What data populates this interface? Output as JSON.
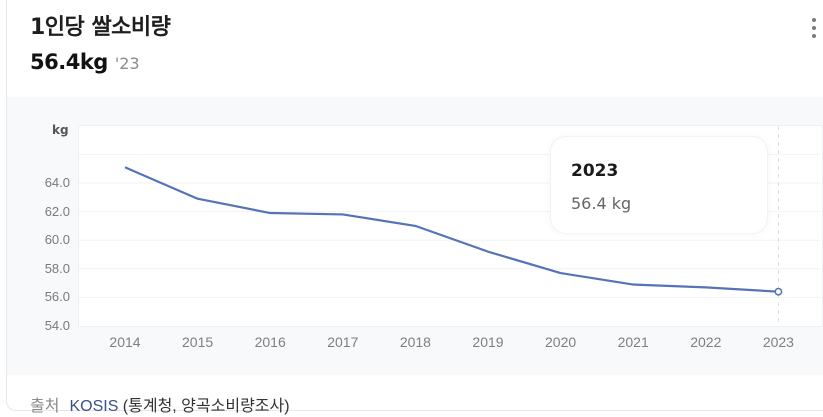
{
  "header": {
    "title": "1인당 쌀소비량",
    "value": "56.4kg",
    "year": "'23"
  },
  "menu": {
    "icon": "more-vertical-icon"
  },
  "chart": {
    "unit": "kg",
    "y_ticks": [
      "64.0",
      "62.0",
      "60.0",
      "58.0",
      "56.0",
      "54.0"
    ],
    "x_ticks": [
      "2014",
      "2015",
      "2016",
      "2017",
      "2018",
      "2019",
      "2020",
      "2021",
      "2022",
      "2023"
    ],
    "line_color": "#5673b8"
  },
  "tooltip": {
    "year": "2023",
    "value": "56.4 kg"
  },
  "source": {
    "label": "출처",
    "link": "KOSIS",
    "detail": " (통계청, 양곡소비량조사)"
  },
  "chart_data": {
    "type": "line",
    "title": "1인당 쌀소비량",
    "xlabel": "",
    "ylabel": "kg",
    "categories": [
      "2014",
      "2015",
      "2016",
      "2017",
      "2018",
      "2019",
      "2020",
      "2021",
      "2022",
      "2023"
    ],
    "series": [
      {
        "name": "1인당 쌀소비량",
        "values": [
          65.1,
          62.9,
          61.9,
          61.8,
          61.0,
          59.2,
          57.7,
          56.9,
          56.7,
          56.4
        ]
      }
    ],
    "ylim": [
      54.0,
      66.0
    ],
    "y_ticks": [
      54.0,
      56.0,
      58.0,
      60.0,
      62.0,
      64.0
    ],
    "grid": true,
    "legend": "none",
    "highlight": {
      "x": "2023",
      "y": 56.4,
      "tooltip": "56.4 kg"
    }
  }
}
